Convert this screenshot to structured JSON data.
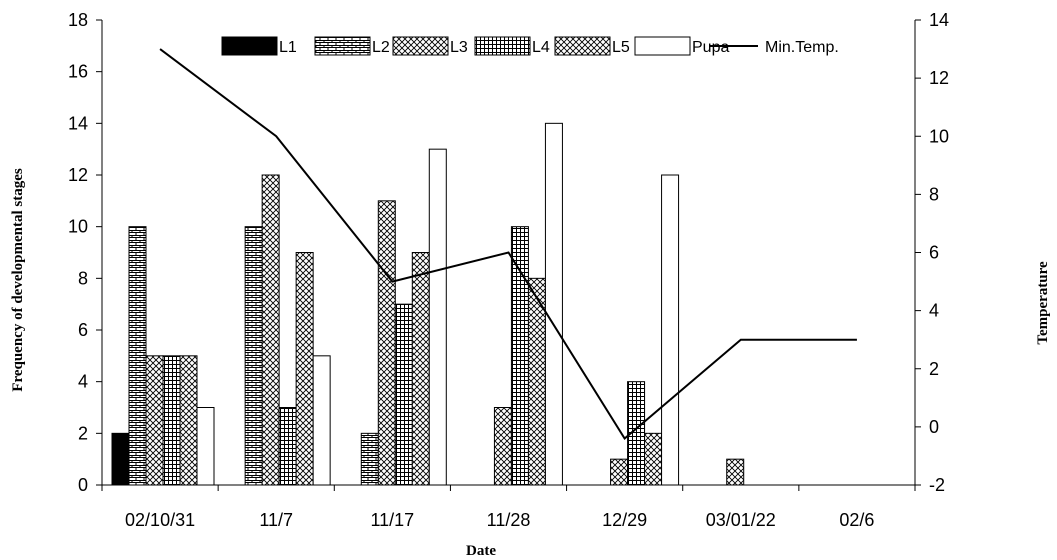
{
  "chart_data": {
    "type": "bar",
    "categories": [
      "02/10/31",
      "11/7",
      "11/17",
      "11/28",
      "12/29",
      "03/01/22",
      "02/6"
    ],
    "series": [
      {
        "name": "L1",
        "values": [
          2,
          0,
          0,
          0,
          0,
          0,
          0
        ],
        "pattern": "solid"
      },
      {
        "name": "L2",
        "values": [
          10,
          10,
          2,
          0,
          0,
          0,
          0
        ],
        "pattern": "brick"
      },
      {
        "name": "L3",
        "values": [
          5,
          12,
          11,
          3,
          1,
          1,
          0
        ],
        "pattern": "crosshatch"
      },
      {
        "name": "L4",
        "values": [
          5,
          3,
          7,
          10,
          4,
          0,
          0
        ],
        "pattern": "grid"
      },
      {
        "name": "L5",
        "values": [
          5,
          9,
          9,
          8,
          2,
          0,
          0
        ],
        "pattern": "crosshatch"
      },
      {
        "name": "Pupa",
        "values": [
          3,
          5,
          13,
          14,
          12,
          0,
          0
        ],
        "pattern": "empty"
      }
    ],
    "line_series": {
      "name": "Min.Temp.",
      "values": [
        13,
        10,
        5,
        6,
        -0.4,
        3,
        3
      ],
      "axis": "right"
    },
    "xlabel": "Date",
    "ylabel": "Frequency of developmental stages",
    "y2label": "Temperature",
    "ylim": [
      0,
      18
    ],
    "yticks": [
      0,
      2,
      4,
      6,
      8,
      10,
      12,
      14,
      16,
      18
    ],
    "y2lim": [
      -2,
      14
    ],
    "y2ticks": [
      -2,
      0,
      2,
      4,
      6,
      8,
      10,
      12,
      14
    ],
    "legend_position": "top",
    "grid": false
  }
}
